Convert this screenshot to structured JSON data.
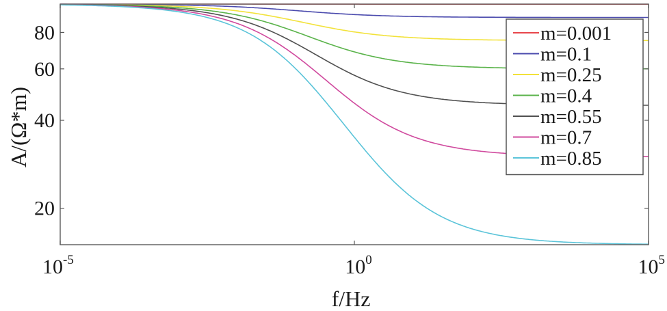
{
  "chart_data": {
    "type": "line",
    "title": "",
    "xlabel": "f/Hz",
    "ylabel": "A/(Ω*m)",
    "xscale": "log",
    "yscale": "log",
    "xlim": [
      1e-05,
      100000
    ],
    "ylim": [
      15,
      100
    ],
    "grid": false,
    "legend_position": "top-right",
    "x_ticks": [
      {
        "value": 1e-05,
        "base": "10",
        "exp": "-5"
      },
      {
        "value": 1,
        "base": "10",
        "exp": "0"
      },
      {
        "value": 100000,
        "base": "10",
        "exp": "5"
      }
    ],
    "y_ticks": [
      {
        "value": 20,
        "label": "20"
      },
      {
        "value": 40,
        "label": "40"
      },
      {
        "value": 60,
        "label": "60"
      },
      {
        "value": 80,
        "label": "80"
      }
    ],
    "series": [
      {
        "name": "m=0.001",
        "color": "#e8464b",
        "rho0": 100,
        "m": 0.001,
        "fc": 0.1,
        "c": 0.5
      },
      {
        "name": "m=0.1",
        "color": "#4a4aad",
        "rho0": 100,
        "m": 0.1,
        "fc": 0.1,
        "c": 0.5
      },
      {
        "name": "m=0.25",
        "color": "#f2e23a",
        "rho0": 100,
        "m": 0.25,
        "fc": 0.1,
        "c": 0.5
      },
      {
        "name": "m=0.4",
        "color": "#5ab34a",
        "rho0": 100,
        "m": 0.4,
        "fc": 0.1,
        "c": 0.5
      },
      {
        "name": "m=0.55",
        "color": "#505050",
        "rho0": 100,
        "m": 0.55,
        "fc": 0.1,
        "c": 0.5
      },
      {
        "name": "m=0.7",
        "color": "#d04a9e",
        "rho0": 100,
        "m": 0.7,
        "fc": 0.1,
        "c": 0.5
      },
      {
        "name": "m=0.85",
        "color": "#5bc4d9",
        "rho0": 100,
        "m": 0.85,
        "fc": 0.1,
        "c": 0.5
      }
    ]
  }
}
